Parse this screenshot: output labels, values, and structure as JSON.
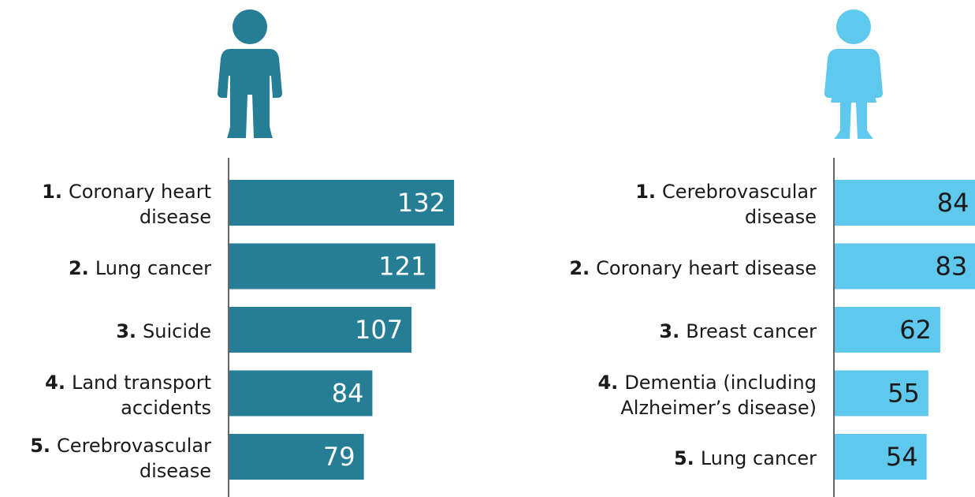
{
  "chart_data": [
    {
      "type": "bar",
      "ranks": [
        "1.",
        "2.",
        "3.",
        "4.",
        "5."
      ],
      "categories": [
        "Coronary heart disease",
        "Lung cancer",
        "Suicide",
        "Land transport accidents",
        "Cerebrovascular disease"
      ],
      "values": [
        132,
        121,
        107,
        84,
        79
      ],
      "color": "#257e96",
      "value_label_color": "#ffffff"
    },
    {
      "type": "bar",
      "ranks": [
        "1.",
        "2.",
        "3.",
        "4.",
        "5."
      ],
      "categories": [
        "Cerebrovascular disease",
        "Coronary heart disease",
        "Breast cancer",
        "Dementia (including Alzheimer’s disease)",
        "Lung cancer"
      ],
      "values": [
        84,
        83,
        62,
        55,
        54
      ],
      "color": "#5ec8ed",
      "value_label_color": "#1a1a1a"
    }
  ]
}
